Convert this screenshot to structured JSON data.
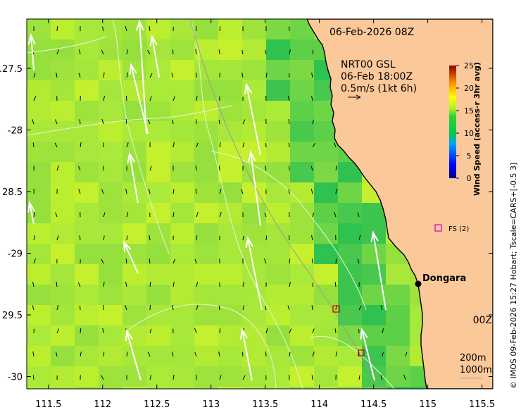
{
  "map": {
    "timestamp": "06-Feb-2026 08Z",
    "legend": {
      "line1": "NRT00 GSL",
      "line2": "06-Feb 18:00Z",
      "line3": "0.5m/s (1kt 6h)"
    },
    "place": "Dongara",
    "site_marker": "FS (2)",
    "partial_text": "00Z",
    "contours": {
      "line1": "200m",
      "line2": "1000m"
    },
    "credit": "© IMOS 09-Feb-2026 15:27 Hobart; Tscale=CARS+[-0.5 3]",
    "x_ticks": [
      "111.5",
      "112",
      "112.5",
      "113",
      "113.5",
      "114",
      "114.5",
      "115",
      "115.5"
    ],
    "y_ticks": [
      "-27.5",
      "-28",
      "-28.5",
      "-29",
      "-29.5",
      "-30"
    ],
    "y_ticks_shown": [
      ".27.5",
      "-28",
      "28.5",
      "-29",
      "29.5",
      "-30"
    ],
    "colors": {
      "land": "#fbc89a",
      "ocean_base": "#a8e83a",
      "coast": "#000000"
    }
  },
  "colorbar": {
    "label": "Wind Speed (access-r 3hr avg)",
    "ticks": [
      "25",
      "20",
      "15",
      "10",
      "5",
      "0"
    ],
    "range": [
      0,
      25
    ]
  },
  "chart_data": {
    "type": "heatmap",
    "title": "06-Feb-2026 08Z",
    "xlabel": "",
    "ylabel": "",
    "xlim": [
      111.3,
      115.6
    ],
    "ylim": [
      -30.1,
      -27.1
    ],
    "x_ticks": [
      111.5,
      112,
      112.5,
      113,
      113.5,
      114,
      114.5,
      115,
      115.5
    ],
    "y_ticks": [
      -27.5,
      -28,
      -28.5,
      -29,
      -29.5,
      -30
    ],
    "colorbar_range": [
      0,
      25
    ],
    "colorbar_label": "Wind Speed (access-r 3hr avg)",
    "typical_wind_speed": 15,
    "nearshore_wind_speed": 12,
    "annotations": [
      "Dongara",
      "FS (2)",
      "200m",
      "1000m",
      "NRT00 GSL",
      "06-Feb 18:00Z",
      "0.5m/s (1kt 6h)"
    ]
  }
}
